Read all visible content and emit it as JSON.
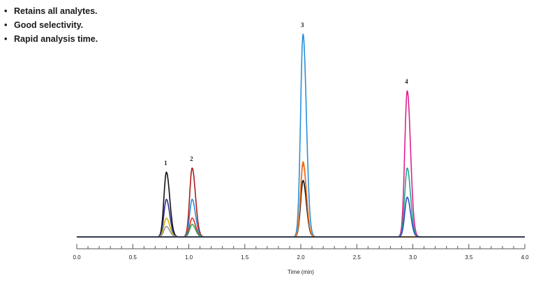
{
  "bullets": [
    {
      "symbol": "•",
      "text": "Retains all analytes."
    },
    {
      "symbol": "•",
      "text": "Good selectivity."
    },
    {
      "symbol": "•",
      "text": "Rapid analysis time."
    }
  ],
  "chart_data": {
    "type": "line",
    "title": "",
    "xlabel": "Time (min)",
    "ylabel": "",
    "xlim": [
      0.0,
      4.0
    ],
    "x_ticks_major": [
      "0.0",
      "0.5",
      "1.0",
      "1.5",
      "2.0",
      "2.5",
      "3.0",
      "3.5",
      "4.0"
    ],
    "x_minor_tick_step": 0.1,
    "grid": false,
    "legend": "none",
    "peak_labels": [
      {
        "label": "1",
        "time": 0.8
      },
      {
        "label": "2",
        "time": 1.03
      },
      {
        "label": "3",
        "time": 2.02
      },
      {
        "label": "4",
        "time": 2.95
      }
    ],
    "series": [
      {
        "name": "black trace",
        "color": "#111111",
        "peaks": [
          {
            "time": 0.8,
            "height": 0.31
          },
          {
            "time": 2.02,
            "height": 0.27
          }
        ]
      },
      {
        "name": "navy trace",
        "color": "#2a2f8f",
        "peaks": [
          {
            "time": 0.8,
            "height": 0.18
          }
        ]
      },
      {
        "name": "yellow trace",
        "color": "#d6b400",
        "peaks": [
          {
            "time": 0.8,
            "height": 0.09
          }
        ]
      },
      {
        "name": "gray trace",
        "color": "#9a9a9a",
        "peaks": [
          {
            "time": 0.8,
            "height": 0.05
          }
        ]
      },
      {
        "name": "dark red trace",
        "color": "#b11a1a",
        "peaks": [
          {
            "time": 1.03,
            "height": 0.33
          }
        ]
      },
      {
        "name": "sky blue trace",
        "color": "#2a8fd8",
        "peaks": [
          {
            "time": 1.03,
            "height": 0.18
          },
          {
            "time": 2.02,
            "height": 0.97
          }
        ]
      },
      {
        "name": "red trace",
        "color": "#e0302a",
        "peaks": [
          {
            "time": 1.03,
            "height": 0.09
          },
          {
            "time": 2.02,
            "height": 0.35
          }
        ]
      },
      {
        "name": "green trace",
        "color": "#2ea84a",
        "peaks": [
          {
            "time": 1.03,
            "height": 0.06
          }
        ]
      },
      {
        "name": "orange trace",
        "color": "#f07a1a",
        "peaks": [
          {
            "time": 2.02,
            "height": 0.36
          }
        ]
      },
      {
        "name": "magenta trace",
        "color": "#e0208a",
        "peaks": [
          {
            "time": 2.95,
            "height": 0.7
          }
        ]
      },
      {
        "name": "teal trace",
        "color": "#20a890",
        "peaks": [
          {
            "time": 2.95,
            "height": 0.33
          }
        ]
      },
      {
        "name": "blue trace",
        "color": "#3050c0",
        "peaks": [
          {
            "time": 2.95,
            "height": 0.19
          }
        ]
      }
    ]
  }
}
